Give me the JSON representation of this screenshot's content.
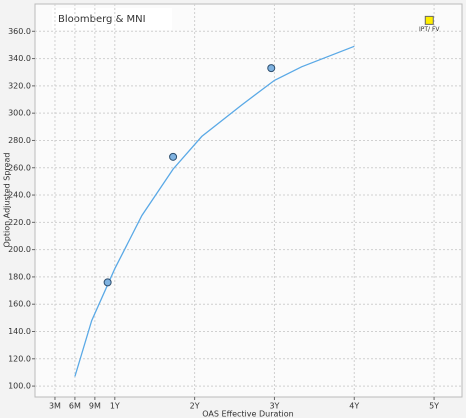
{
  "chart_data": {
    "type": "line",
    "title": "Bloomberg & MNI",
    "x_label": "OAS Effective Duration",
    "y_label": "Option Adjusted Spread",
    "xlim": [
      0,
      5.35
    ],
    "ylim": [
      92,
      380
    ],
    "xticks": [
      {
        "value": 0.25,
        "label": "3M"
      },
      {
        "value": 0.5,
        "label": "6M"
      },
      {
        "value": 0.75,
        "label": "9M"
      },
      {
        "value": 1,
        "label": "1Y"
      },
      {
        "value": 2,
        "label": "2Y"
      },
      {
        "value": 3,
        "label": "3Y"
      },
      {
        "value": 4,
        "label": "4Y"
      },
      {
        "value": 5,
        "label": "5Y"
      }
    ],
    "yticks": [
      {
        "value": 100,
        "label": "100.0"
      },
      {
        "value": 120,
        "label": "120.0"
      },
      {
        "value": 140,
        "label": "140.0"
      },
      {
        "value": 160,
        "label": "160.0"
      },
      {
        "value": 180,
        "label": "180.0"
      },
      {
        "value": 200,
        "label": "200.0"
      },
      {
        "value": 220,
        "label": "220.0"
      },
      {
        "value": 240,
        "label": "240.0"
      },
      {
        "value": 260,
        "label": "260.0"
      },
      {
        "value": 280,
        "label": "280.0"
      },
      {
        "value": 300,
        "label": "300.0"
      },
      {
        "value": 320,
        "label": "320.0"
      },
      {
        "value": 340,
        "label": "340.0"
      },
      {
        "value": 360,
        "label": "360.0"
      }
    ],
    "grid": true,
    "series": [
      {
        "type": "line",
        "color": "#5aa9e6",
        "x": [
          0.5,
          0.71,
          1.0,
          1.34,
          1.73,
          2.09,
          2.59,
          3.0,
          3.34,
          4.0
        ],
        "values": [
          107,
          148,
          186,
          225,
          259,
          283,
          306,
          324,
          334,
          349
        ]
      },
      {
        "type": "scatter",
        "color": "#7fb2e0",
        "x": [
          0.91,
          1.73,
          2.96
        ],
        "values": [
          176,
          268,
          333
        ]
      },
      {
        "type": "marker",
        "color": "#ffee00",
        "x": [
          4.94
        ],
        "values": [
          368
        ],
        "label": "IPT/ FV"
      }
    ]
  }
}
